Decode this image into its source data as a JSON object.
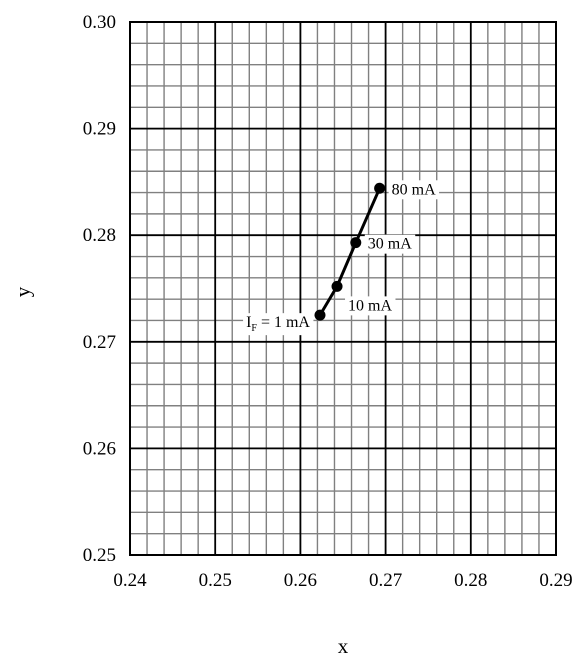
{
  "chart_data": {
    "type": "scatter",
    "title": "",
    "xlabel": "x",
    "ylabel": "y",
    "xlim": [
      0.24,
      0.29
    ],
    "ylim": [
      0.25,
      0.3
    ],
    "x_ticks": [
      0.24,
      0.25,
      0.26,
      0.27,
      0.28,
      0.29
    ],
    "y_ticks": [
      0.25,
      0.26,
      0.27,
      0.28,
      0.29,
      0.3
    ],
    "x_tick_labels": [
      "0.24",
      "0.25",
      "0.26",
      "0.27",
      "0.28",
      "0.29"
    ],
    "y_tick_labels": [
      "0.25",
      "0.26",
      "0.27",
      "0.28",
      "0.29",
      "0.30"
    ],
    "grid": true,
    "major_grid_step": 0.01,
    "minor_grid_step": 0.002,
    "line_color": "#000000",
    "grid_color": "#808080",
    "series": [
      {
        "x": [
          0.2623,
          0.2643,
          0.2665,
          0.2693
        ],
        "y": [
          0.2725,
          0.2752,
          0.2793,
          0.2844
        ],
        "marker": "circle",
        "connected": true
      }
    ],
    "annotations": [
      {
        "text": "I",
        "subscript": "F",
        "suffix": " = 1 mA",
        "point_index": 0,
        "side": "left"
      },
      {
        "text": "10 mA",
        "point_index": 1,
        "side": "right-below"
      },
      {
        "text": "30 mA",
        "point_index": 2,
        "side": "right"
      },
      {
        "text": "80 mA",
        "point_index": 3,
        "side": "right"
      }
    ]
  }
}
